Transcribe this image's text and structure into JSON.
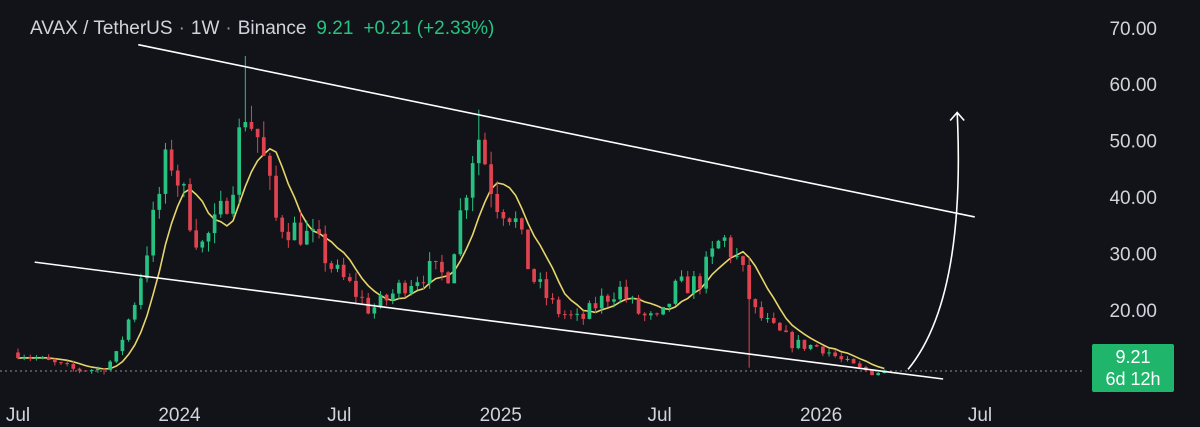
{
  "header": {
    "symbol": "AVAX / TetherUS",
    "interval": "1W",
    "exchange": "Binance",
    "last": "9.21",
    "change": "+0.21 (+2.33%)",
    "separator": "·"
  },
  "price_badge": {
    "price": "9.21",
    "countdown": "6d 12h"
  },
  "colors": {
    "background": "#121318",
    "up": "#26c281",
    "down": "#e0434f",
    "ma": "#e6d56a",
    "trendline": "#ffffff",
    "text": "#d1d4dc",
    "badge": "#1fb56b"
  },
  "chart_data": {
    "type": "candlestick",
    "ylim": [
      5.5,
      73.5
    ],
    "y_ticks": [
      "70.00",
      "60.00",
      "50.00",
      "40.00",
      "30.00",
      "20.00"
    ],
    "x_tick_labels": [
      "Jul",
      "2024",
      "Jul",
      "2025",
      "Jul",
      "2026",
      "Jul"
    ],
    "x_tick_dates": [
      "2023-07-01",
      "2024-01-01",
      "2024-07-01",
      "2025-01-01",
      "2025-07-01",
      "2026-01-01",
      "2026-07-01"
    ],
    "x_range": [
      "2023-07-01",
      "2026-07-01"
    ],
    "current_price": 9.21,
    "price_path_close": [
      [
        "2023-07-01",
        12.5
      ],
      [
        "2023-08-01",
        11.0
      ],
      [
        "2023-09-01",
        9.5
      ],
      [
        "2023-10-01",
        9.5
      ],
      [
        "2023-10-20",
        11.5
      ],
      [
        "2023-11-10",
        21.0
      ],
      [
        "2023-12-01",
        35.0
      ],
      [
        "2023-12-20",
        48.0
      ],
      [
        "2024-01-10",
        38.0
      ],
      [
        "2024-01-25",
        31.0
      ],
      [
        "2024-02-15",
        36.0
      ],
      [
        "2024-03-01",
        43.0
      ],
      [
        "2024-03-15",
        56.0
      ],
      [
        "2024-04-01",
        50.0
      ],
      [
        "2024-04-20",
        36.0
      ],
      [
        "2024-05-15",
        34.0
      ],
      [
        "2024-06-05",
        32.0
      ],
      [
        "2024-06-25",
        27.0
      ],
      [
        "2024-07-15",
        24.0
      ],
      [
        "2024-08-05",
        20.0
      ],
      [
        "2024-08-25",
        22.0
      ],
      [
        "2024-09-15",
        25.0
      ],
      [
        "2024-10-10",
        27.0
      ],
      [
        "2024-11-01",
        26.0
      ],
      [
        "2024-11-20",
        40.0
      ],
      [
        "2024-12-05",
        52.0
      ],
      [
        "2024-12-25",
        40.0
      ],
      [
        "2025-01-15",
        37.0
      ],
      [
        "2025-02-05",
        26.0
      ],
      [
        "2025-03-05",
        20.0
      ],
      [
        "2025-04-01",
        18.0
      ],
      [
        "2025-04-20",
        21.0
      ],
      [
        "2025-05-15",
        24.0
      ],
      [
        "2025-06-10",
        19.0
      ],
      [
        "2025-07-01",
        18.0
      ],
      [
        "2025-07-20",
        24.0
      ],
      [
        "2025-08-15",
        25.0
      ],
      [
        "2025-09-10",
        33.0
      ],
      [
        "2025-10-01",
        28.0
      ],
      [
        "2025-10-15",
        20.0
      ],
      [
        "2025-11-05",
        17.0
      ],
      [
        "2025-12-01",
        14.0
      ],
      [
        "2026-01-01",
        13.5
      ],
      [
        "2026-01-25",
        11.0
      ],
      [
        "2026-02-15",
        9.5
      ],
      [
        "2026-03-01",
        9.0
      ],
      [
        "2026-03-20",
        9.21
      ]
    ],
    "wick_extremes": [
      [
        "2024-03-15",
        "high",
        65.0
      ],
      [
        "2024-12-05",
        "high",
        55.5
      ],
      [
        "2025-10-10",
        "low",
        9.8
      ],
      [
        "2023-10-05",
        "low",
        8.6
      ]
    ],
    "trendlines": [
      {
        "name": "upper",
        "points": [
          [
            "2023-11-15",
            67.0
          ],
          [
            "2026-06-25",
            36.5
          ]
        ]
      },
      {
        "name": "lower",
        "points": [
          [
            "2023-07-20",
            28.5
          ],
          [
            "2026-05-20",
            7.8
          ]
        ]
      }
    ],
    "arrow": {
      "points": [
        [
          "2026-04-10",
          9.5
        ],
        [
          "2026-06-15",
          22.0
        ],
        [
          "2026-06-05",
          55.0
        ]
      ]
    },
    "grid": false
  }
}
